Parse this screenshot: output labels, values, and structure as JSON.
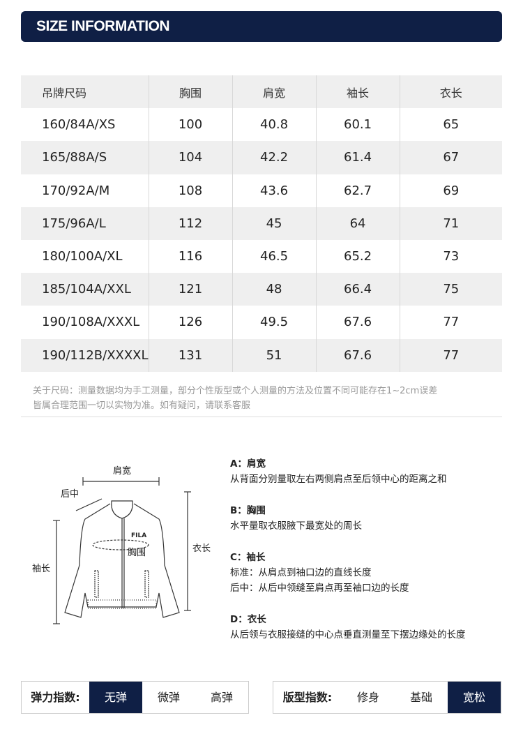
{
  "title": "SIZE INFORMATION",
  "table": {
    "headers": [
      "吊牌尺码",
      "胸围",
      "肩宽",
      "袖长",
      "衣长"
    ],
    "rows": [
      [
        "160/84A/XS",
        "100",
        "40.8",
        "60.1",
        "65"
      ],
      [
        "165/88A/S",
        "104",
        "42.2",
        "61.4",
        "67"
      ],
      [
        "170/92A/M",
        "108",
        "43.6",
        "62.7",
        "69"
      ],
      [
        "175/96A/L",
        "112",
        "45",
        "64",
        "71"
      ],
      [
        "180/100A/XL",
        "116",
        "46.5",
        "65.2",
        "73"
      ],
      [
        "185/104A/XXL",
        "121",
        "48",
        "66.4",
        "75"
      ],
      [
        "190/108A/XXXL",
        "126",
        "49.5",
        "67.6",
        "77"
      ],
      [
        "190/112B/XXXXL",
        "131",
        "51",
        "67.6",
        "77"
      ]
    ]
  },
  "note": [
    "关于尺码：测量数据均为手工测量，部分个性版型或个人测量的方法及位置不同可能存在1~2cm误差",
    "皆属合理范围一切以实物为准。如有疑问，请联系客服"
  ],
  "diagram": {
    "shoulder": "肩宽",
    "back_center": "后中",
    "sleeve": "袖长",
    "chest": "胸围",
    "length": "衣长",
    "logo": "FILA"
  },
  "descriptions": [
    {
      "title": "A：肩宽",
      "lines": [
        "从背面分别量取左右两侧肩点至后领中心的距离之和"
      ]
    },
    {
      "title": "B：胸围",
      "lines": [
        "水平量取衣服腋下最宽处的周长"
      ]
    },
    {
      "title": "C：袖长",
      "lines": [
        "标准：从肩点到袖口边的直线长度",
        "后中：从后中领缝至肩点再至袖口边的长度"
      ]
    },
    {
      "title": "D：衣长",
      "lines": [
        "从后领与衣服接缝的中心点垂直测量至下摆边缘处的长度"
      ]
    }
  ],
  "elasticity": {
    "label": "弹力指数:",
    "options": [
      "无弹",
      "微弹",
      "高弹"
    ],
    "selected": "无弹"
  },
  "fit": {
    "label": "版型指数:",
    "options": [
      "修身",
      "基础",
      "宽松"
    ],
    "selected": "宽松"
  },
  "colors": {
    "navy": "#0f1f45",
    "stripe": "#efefef"
  }
}
